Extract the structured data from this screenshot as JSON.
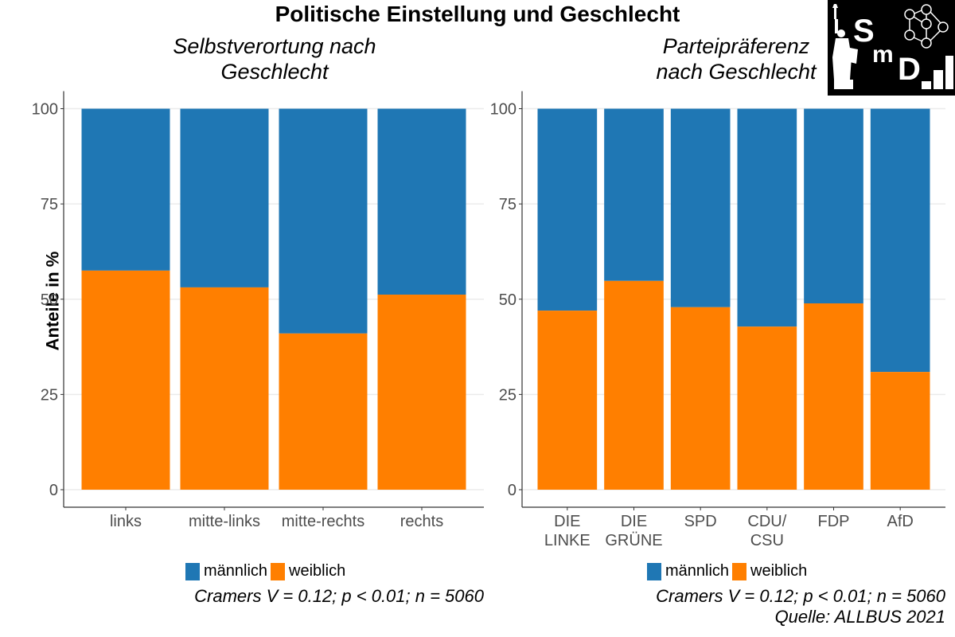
{
  "title": "Politische Einstellung und Geschlecht",
  "y_axis_label": "Anteile in %",
  "logo": {
    "text": "SmD",
    "icon": "smd-logo-statue-network-bars"
  },
  "colors": {
    "maennlich": "#1F77B4",
    "weiblich": "#FF7F00",
    "grid": "#EBEBEB",
    "axis": "#333333",
    "tick_text": "#4D4D4D"
  },
  "chart_data": [
    {
      "type": "bar",
      "stacked": true,
      "title": "Selbstverortung nach\nGeschlecht",
      "xlabel": "",
      "ylabel": "Anteile in %",
      "ylim": [
        0,
        100
      ],
      "yticks": [
        0,
        25,
        50,
        75,
        100
      ],
      "grid": true,
      "categories": [
        "links",
        "mitte-links",
        "mitte-rechts",
        "rechts"
      ],
      "series": [
        {
          "name": "weiblich",
          "values": [
            57.5,
            53.1,
            41.0,
            51.2
          ]
        },
        {
          "name": "männlich",
          "values": [
            42.5,
            46.9,
            59.0,
            48.8
          ]
        }
      ],
      "legend": {
        "position": "bottom",
        "entries": [
          "männlich",
          "weiblich"
        ]
      },
      "caption": "Cramers V = 0.12; p < 0.01; n = 5060"
    },
    {
      "type": "bar",
      "stacked": true,
      "title": "Parteipräferenz\nnach Geschlecht",
      "xlabel": "",
      "ylabel": "",
      "ylim": [
        0,
        100
      ],
      "yticks": [
        0,
        25,
        50,
        75,
        100
      ],
      "grid": true,
      "categories": [
        "DIE\nLINKE",
        "DIE\nGRÜNE",
        "SPD",
        "CDU/\nCSU",
        "FDP",
        "AfD"
      ],
      "series": [
        {
          "name": "weiblich",
          "values": [
            47.0,
            54.8,
            47.9,
            42.8,
            48.9,
            30.9
          ]
        },
        {
          "name": "männlich",
          "values": [
            53.0,
            45.2,
            52.1,
            57.2,
            51.1,
            69.1
          ]
        }
      ],
      "legend": {
        "position": "bottom",
        "entries": [
          "männlich",
          "weiblich"
        ]
      },
      "caption": "Cramers V = 0.12; p < 0.01; n = 5060",
      "source": "Quelle: ALLBUS 2021"
    }
  ]
}
